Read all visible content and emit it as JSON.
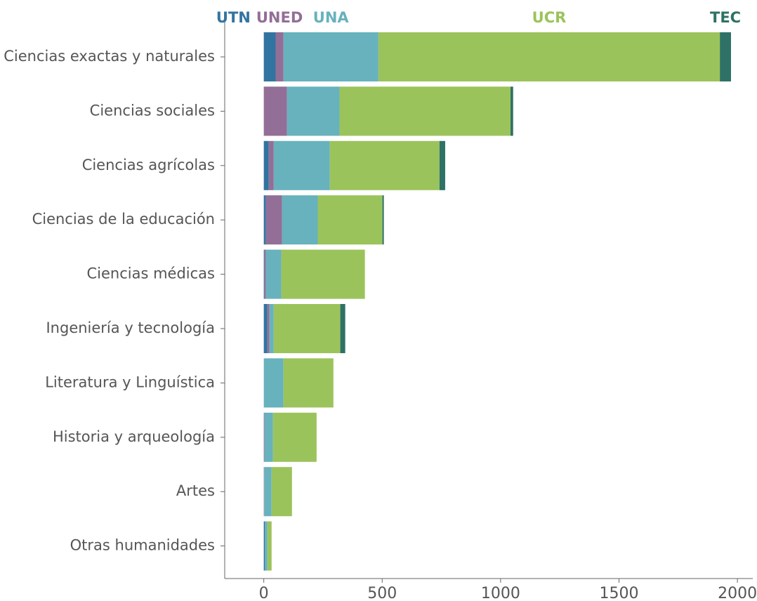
{
  "chart_data": {
    "type": "stacked_barh",
    "categories": [
      "Ciencias exactas y naturales",
      "Ciencias sociales",
      "Ciencias agrícolas",
      "Ciencias de la educación",
      "Ciencias médicas",
      "Ingeniería y tecnología",
      "Literatura y Linguística",
      "Historia y arqueología",
      "Artes",
      "Otras humanidades"
    ],
    "series": [
      {
        "name": "UTN",
        "color": "#3274a1",
        "values": [
          50,
          0,
          21,
          9,
          3,
          15,
          0,
          0,
          0,
          5
        ]
      },
      {
        "name": "UNED",
        "color": "#936e97",
        "values": [
          33,
          98,
          21,
          68,
          6,
          9,
          0,
          3,
          2,
          0
        ]
      },
      {
        "name": "UNA",
        "color": "#67b2bd",
        "values": [
          401,
          222,
          237,
          151,
          65,
          18,
          83,
          36,
          31,
          10
        ]
      },
      {
        "name": "UCR",
        "color": "#9bc35b",
        "values": [
          1442,
          722,
          463,
          273,
          353,
          281,
          211,
          184,
          86,
          18
        ]
      },
      {
        "name": "TEC",
        "color": "#2e7166",
        "values": [
          47,
          11,
          24,
          6,
          0,
          21,
          0,
          0,
          0,
          0
        ]
      }
    ],
    "xlim": [
      -165,
      2065
    ],
    "xticks": [
      0,
      500,
      1000,
      1500,
      2000
    ]
  }
}
